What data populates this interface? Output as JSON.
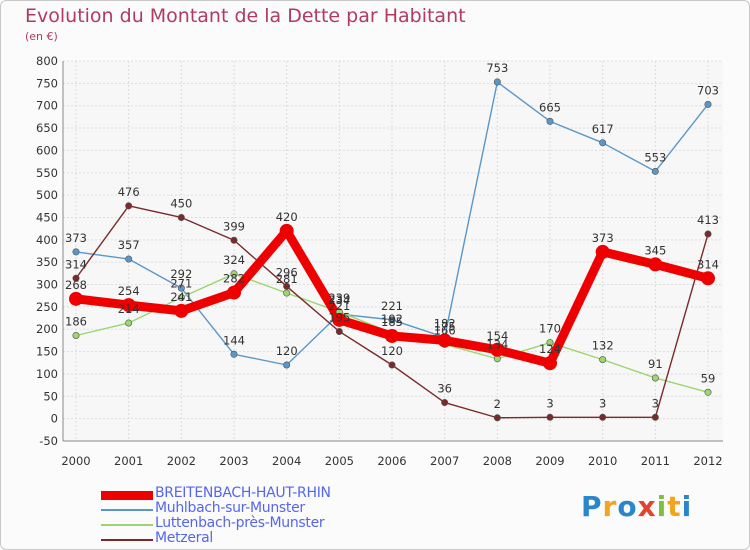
{
  "title": "Evolution du Montant de la Dette par Habitant",
  "subtitle": "(en €)",
  "logo": {
    "letters": [
      "P",
      "r",
      "o",
      "x",
      "i",
      "t",
      "i"
    ],
    "colors": [
      "#2b86c9",
      "#f2a51c",
      "#2b86c9",
      "#e0442e",
      "#7fbf3f",
      "#f2a51c",
      "#2b86c9"
    ]
  },
  "chart_data": {
    "type": "line",
    "x": [
      "2000",
      "2001",
      "2002",
      "2003",
      "2004",
      "2005",
      "2006",
      "2007",
      "2008",
      "2009",
      "2010",
      "2011",
      "2012"
    ],
    "yticks": [
      -50,
      0,
      50,
      100,
      150,
      200,
      250,
      300,
      350,
      400,
      450,
      500,
      550,
      600,
      650,
      700,
      750,
      800
    ],
    "ylim": [
      -50,
      800
    ],
    "grid": true,
    "legend": "bottom-left",
    "series": [
      {
        "name": "Muhlbach-sur-Munster",
        "color": "#5a97c9",
        "values": [
          373,
          357,
          292,
          144,
          120,
          234,
          221,
          182,
          753,
          665,
          617,
          553,
          703
        ]
      },
      {
        "name": "Luttenbach-près-Munster",
        "color": "#9bd66f",
        "values": [
          186,
          214,
          271,
          324,
          281,
          239,
          192,
          166,
          134,
          170,
          132,
          91,
          59
        ]
      },
      {
        "name": "Metzeral",
        "color": "#7a2a2a",
        "values": [
          314,
          476,
          450,
          399,
          296,
          195,
          120,
          36,
          2,
          3,
          3,
          3,
          413
        ]
      },
      {
        "name": "BREITENBACH-HAUT-RHIN",
        "color": "#ee0000",
        "values": [
          268,
          254,
          241,
          282,
          420,
          221,
          185,
          175,
          154,
          124,
          373,
          345,
          314
        ]
      }
    ],
    "legend_order": [
      "BREITENBACH-HAUT-RHIN",
      "Muhlbach-sur-Munster",
      "Luttenbach-près-Munster",
      "Metzeral"
    ]
  }
}
